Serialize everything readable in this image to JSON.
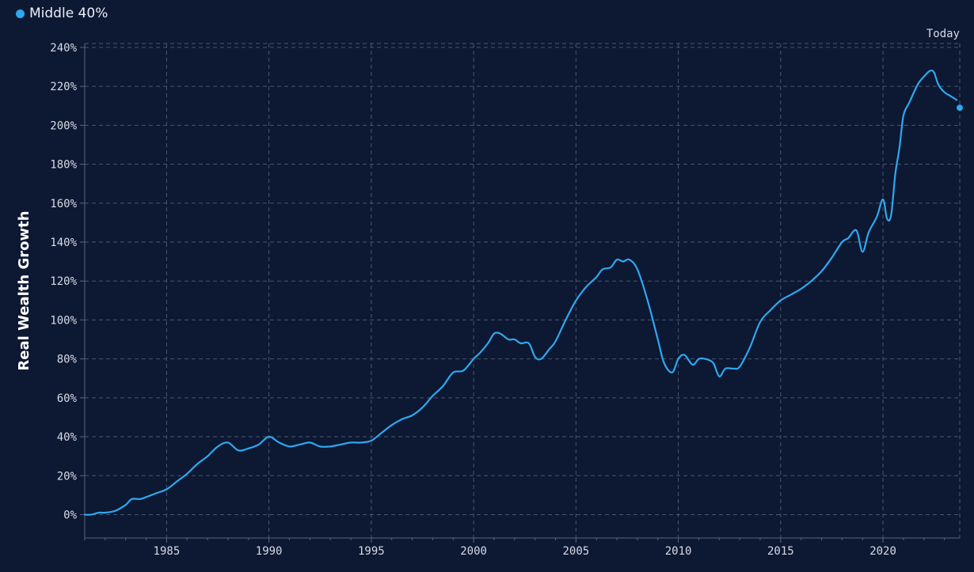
{
  "colors": {
    "background": "#0d1833",
    "series": "#2ea8f0",
    "grid": "#4a5670",
    "axis": "#5a6478",
    "text": "#d6dbe6"
  },
  "chart_data": {
    "type": "line",
    "xlabel": "",
    "ylabel": "Real Wealth Growth",
    "xlim": [
      1981,
      2023.75
    ],
    "ylim": [
      -12,
      242
    ],
    "x_ticks": [
      1985,
      1990,
      1995,
      2000,
      2005,
      2010,
      2015,
      2020
    ],
    "y_ticks": [
      0,
      20,
      40,
      60,
      80,
      100,
      120,
      140,
      160,
      180,
      200,
      220,
      240
    ],
    "y_tick_format": "%",
    "grid": true,
    "legend_position": "top-left",
    "end_marker_label": "Today",
    "series": [
      {
        "name": "Middle 40%",
        "color": "#2ea8f0",
        "x": [
          1981.0,
          1981.3,
          1981.7,
          1982.0,
          1982.5,
          1983.0,
          1983.3,
          1983.7,
          1984.0,
          1984.5,
          1985.0,
          1985.5,
          1986.0,
          1986.5,
          1987.0,
          1987.5,
          1988.0,
          1988.5,
          1989.0,
          1989.5,
          1990.0,
          1990.5,
          1991.0,
          1991.5,
          1992.0,
          1992.5,
          1993.0,
          1993.5,
          1994.0,
          1994.5,
          1995.0,
          1995.5,
          1996.0,
          1996.5,
          1997.0,
          1997.5,
          1998.0,
          1998.5,
          1999.0,
          1999.5,
          2000.0,
          2000.3,
          2000.7,
          2001.0,
          2001.3,
          2001.7,
          2002.0,
          2002.3,
          2002.7,
          2003.0,
          2003.3,
          2003.7,
          2004.0,
          2004.5,
          2005.0,
          2005.5,
          2006.0,
          2006.3,
          2006.7,
          2007.0,
          2007.3,
          2007.6,
          2008.0,
          2008.5,
          2009.0,
          2009.3,
          2009.7,
          2010.0,
          2010.3,
          2010.7,
          2011.0,
          2011.3,
          2011.7,
          2012.0,
          2012.3,
          2012.7,
          2013.0,
          2013.5,
          2014.0,
          2014.5,
          2015.0,
          2015.5,
          2016.0,
          2016.5,
          2017.0,
          2017.5,
          2018.0,
          2018.3,
          2018.7,
          2019.0,
          2019.3,
          2019.7,
          2020.0,
          2020.2,
          2020.4,
          2020.6,
          2020.8,
          2021.0,
          2021.3,
          2021.7,
          2022.0,
          2022.3,
          2022.5,
          2022.7,
          2023.0,
          2023.3,
          2023.6
        ],
        "values": [
          0,
          0,
          1,
          1,
          2,
          5,
          8,
          8,
          9,
          11,
          13,
          17,
          21,
          26,
          30,
          35,
          37,
          33,
          34,
          36,
          40,
          37,
          35,
          36,
          37,
          35,
          35,
          36,
          37,
          37,
          38,
          42,
          46,
          49,
          51,
          55,
          61,
          66,
          73,
          74,
          80,
          83,
          88,
          93,
          93,
          90,
          90,
          88,
          88,
          81,
          80,
          85,
          89,
          100,
          110,
          117,
          122,
          126,
          127,
          131,
          130,
          131,
          126,
          110,
          90,
          78,
          73,
          80,
          82,
          77,
          80,
          80,
          78,
          71,
          75,
          75,
          76,
          86,
          99,
          105,
          110,
          113,
          116,
          120,
          125,
          132,
          140,
          142,
          146,
          135,
          145,
          153,
          162,
          152,
          154,
          175,
          188,
          205,
          212,
          221,
          225,
          228,
          227,
          221,
          217,
          215,
          213
        ]
      }
    ],
    "end_value": {
      "x": 2023.75,
      "value": 209
    }
  }
}
